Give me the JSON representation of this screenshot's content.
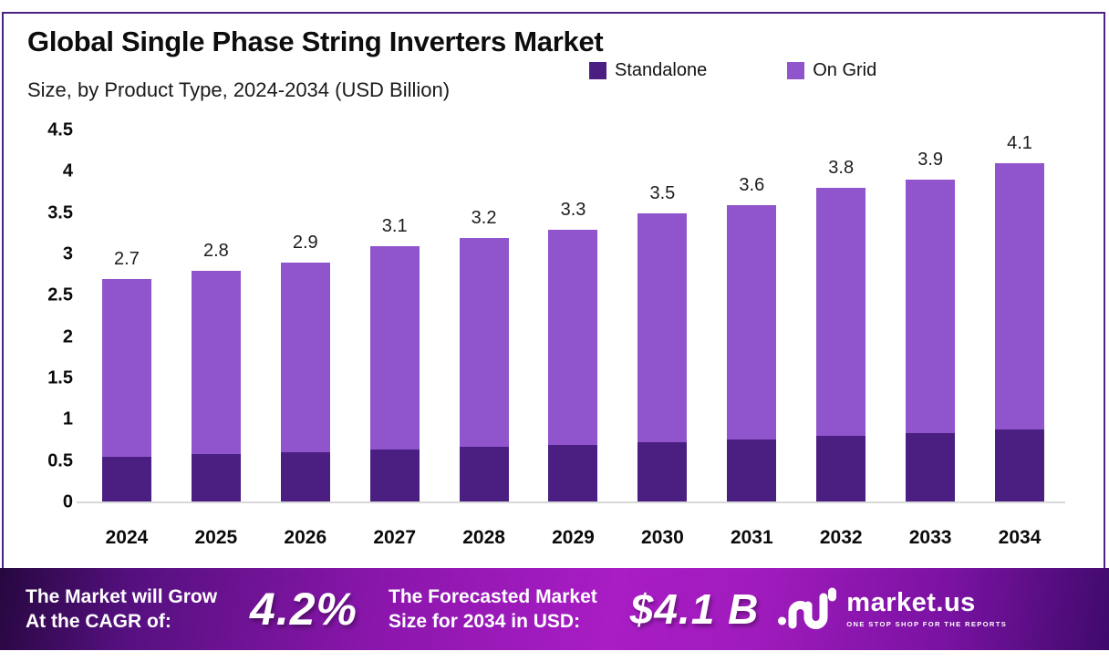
{
  "title": "Global Single Phase String Inverters Market",
  "subtitle": "Size, by Product Type, 2024-2034 (USD Billion)",
  "colors": {
    "standalone": "#4b1f82",
    "on_grid": "#9055cc",
    "frame_border": "#4b2382",
    "axis_line": "#d8d8d8",
    "banner_text": "#ffffff"
  },
  "legend": {
    "items": [
      {
        "label": "Standalone",
        "color": "#4b1f82"
      },
      {
        "label": "On Grid",
        "color": "#9055cc"
      }
    ]
  },
  "chart_data": {
    "type": "bar",
    "stacked": true,
    "title": "Global Single Phase String Inverters Market Size, by Product Type, 2024-2034 (USD Billion)",
    "categories": [
      "2024",
      "2025",
      "2026",
      "2027",
      "2028",
      "2029",
      "2030",
      "2031",
      "2032",
      "2033",
      "2034"
    ],
    "series": [
      {
        "name": "Standalone",
        "color": "#4b1f82",
        "values": [
          0.55,
          0.58,
          0.61,
          0.64,
          0.67,
          0.7,
          0.73,
          0.76,
          0.8,
          0.84,
          0.88
        ]
      },
      {
        "name": "On Grid",
        "color": "#9055cc",
        "values": [
          2.15,
          2.22,
          2.29,
          2.46,
          2.53,
          2.6,
          2.77,
          2.84,
          3.0,
          3.06,
          3.22
        ]
      }
    ],
    "totals": [
      2.7,
      2.8,
      2.9,
      3.1,
      3.2,
      3.3,
      3.5,
      3.6,
      3.8,
      3.9,
      4.1
    ],
    "total_labels": [
      "2.7",
      "2.8",
      "2.9",
      "3.1",
      "3.2",
      "3.3",
      "3.5",
      "3.6",
      "3.8",
      "3.9",
      "4.1"
    ],
    "xlabel": "",
    "ylabel": "",
    "ylim": [
      0,
      4.5
    ],
    "yticks": [
      0,
      0.5,
      1,
      1.5,
      2,
      2.5,
      3,
      3.5,
      4,
      4.5
    ],
    "ytick_labels": [
      "0",
      "0.5",
      "1",
      "1.5",
      "2",
      "2.5",
      "3",
      "3.5",
      "4",
      "4.5"
    ],
    "grid": false,
    "legend_position": "top-right"
  },
  "banner": {
    "cagr_caption_line1": "The Market will Grow",
    "cagr_caption_line2": "At the CAGR of:",
    "cagr_value": "4.2%",
    "forecast_caption_line1": "The Forecasted Market",
    "forecast_caption_line2": "Size for 2034 in USD:",
    "forecast_value": "$4.1 B",
    "logo_name": "market.us",
    "logo_tagline": "ONE STOP SHOP FOR THE REPORTS"
  }
}
